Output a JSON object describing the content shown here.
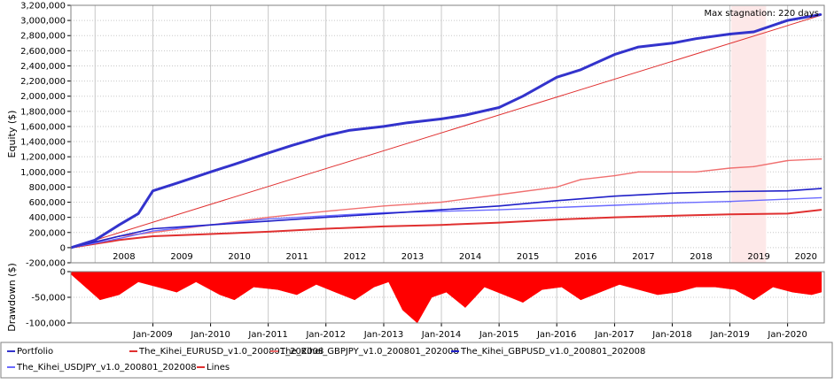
{
  "chart_data": [
    {
      "type": "line",
      "ylabel": "Equity ($)",
      "ylim": [
        -200000,
        3200000
      ],
      "y_ticks": [
        "-200,000",
        "0",
        "200,000",
        "400,000",
        "600,000",
        "800,000",
        "1,000,000",
        "1,200,000",
        "1,400,000",
        "1,600,000",
        "1,800,000",
        "2,000,000",
        "2,200,000",
        "2,400,000",
        "2,600,000",
        "2,800,000",
        "3,000,000",
        "3,200,000"
      ],
      "x_ticks": [
        "2008",
        "2009",
        "2010",
        "2011",
        "2012",
        "2013",
        "2014",
        "2015",
        "2016",
        "2017",
        "2018",
        "2019",
        "2020"
      ],
      "grid": true,
      "annotation": "Max stagnation: 220 days",
      "stagnation_period": {
        "start": "2019-01-10",
        "end": "2019-08-18"
      },
      "series": [
        {
          "name": "Portfolio",
          "color": "#3333cc",
          "x": [
            "2007-08-01",
            "2008-01-01",
            "2008-06-01",
            "2008-10-01",
            "2009-01-01",
            "2009-06-01",
            "2010-01-01",
            "2010-06-01",
            "2011-01-01",
            "2011-06-01",
            "2012-01-01",
            "2012-06-01",
            "2013-01-01",
            "2013-06-01",
            "2014-01-01",
            "2014-06-01",
            "2015-01-01",
            "2015-06-01",
            "2016-01-01",
            "2016-06-01",
            "2017-01-01",
            "2017-06-01",
            "2018-01-01",
            "2018-06-01",
            "2019-01-01",
            "2019-06-01",
            "2020-01-01",
            "2020-08-01"
          ],
          "values": [
            0,
            100000,
            300000,
            450000,
            750000,
            850000,
            1000000,
            1100000,
            1250000,
            1350000,
            1480000,
            1550000,
            1600000,
            1650000,
            1700000,
            1750000,
            1850000,
            2000000,
            2250000,
            2350000,
            2550000,
            2650000,
            2700000,
            2760000,
            2820000,
            2850000,
            3000000,
            3080000
          ]
        },
        {
          "name": "The_Kihei_EURUSD_v1.0_200801_202008",
          "color": "#e03030",
          "x": [
            "2007-08-01",
            "2008-06-01",
            "2009-01-01",
            "2010-01-01",
            "2011-01-01",
            "2012-01-01",
            "2013-01-01",
            "2014-01-01",
            "2015-01-01",
            "2016-01-01",
            "2017-01-01",
            "2018-01-01",
            "2019-01-01",
            "2020-01-01",
            "2020-08-01"
          ],
          "values": [
            0,
            100000,
            150000,
            180000,
            210000,
            250000,
            280000,
            300000,
            330000,
            370000,
            400000,
            420000,
            440000,
            450000,
            500000
          ]
        },
        {
          "name": "The_Kihei_GBPJPY_v1.0_200801_202008",
          "color": "#f07070",
          "x": [
            "2007-08-01",
            "2008-06-01",
            "2009-01-01",
            "2010-01-01",
            "2011-01-01",
            "2012-01-01",
            "2013-01-01",
            "2014-01-01",
            "2015-01-01",
            "2016-01-01",
            "2016-06-01",
            "2017-01-01",
            "2017-06-01",
            "2018-01-01",
            "2018-06-01",
            "2019-01-01",
            "2019-06-01",
            "2020-01-01",
            "2020-08-01"
          ],
          "values": [
            0,
            150000,
            200000,
            300000,
            400000,
            480000,
            550000,
            600000,
            700000,
            800000,
            900000,
            950000,
            1000000,
            1000000,
            1000000,
            1050000,
            1070000,
            1150000,
            1170000
          ]
        },
        {
          "name": "The_Kihei_GBPUSD_v1.0_200801_202008",
          "color": "#2020c8",
          "x": [
            "2007-08-01",
            "2008-06-01",
            "2009-01-01",
            "2010-01-01",
            "2011-01-01",
            "2012-01-01",
            "2013-01-01",
            "2014-01-01",
            "2015-01-01",
            "2016-01-01",
            "2017-01-01",
            "2018-01-01",
            "2019-01-01",
            "2020-01-01",
            "2020-08-01"
          ],
          "values": [
            0,
            150000,
            250000,
            300000,
            350000,
            400000,
            450000,
            500000,
            550000,
            620000,
            680000,
            720000,
            740000,
            750000,
            780000
          ]
        },
        {
          "name": "The_Kihei_USDJPY_v1.0_200801_202008",
          "color": "#6a6aff",
          "x": [
            "2007-08-01",
            "2008-06-01",
            "2009-01-01",
            "2010-01-01",
            "2011-01-01",
            "2012-01-01",
            "2013-01-01",
            "2014-01-01",
            "2015-01-01",
            "2016-01-01",
            "2017-01-01",
            "2018-01-01",
            "2019-01-01",
            "2020-01-01",
            "2020-08-01"
          ],
          "values": [
            0,
            120000,
            220000,
            300000,
            380000,
            420000,
            460000,
            480000,
            500000,
            530000,
            560000,
            590000,
            610000,
            640000,
            660000
          ]
        },
        {
          "name": "Lines",
          "color": "#e03030",
          "x": [
            "2007-08-01",
            "2020-08-01"
          ],
          "values": [
            0,
            3070000
          ]
        }
      ]
    },
    {
      "type": "area",
      "ylabel": "Drawdown ($)",
      "ylim": [
        -100000,
        0
      ],
      "y_ticks": [
        "0",
        "-50,000",
        "-100,000"
      ],
      "x_ticks": [
        "Jan-2009",
        "Jan-2010",
        "Jan-2011",
        "Jan-2012",
        "Jan-2013",
        "Jan-2014",
        "Jan-2015",
        "Jan-2016",
        "Jan-2017",
        "Jan-2018",
        "Jan-2019",
        "Jan-2020"
      ],
      "grid": true,
      "color": "#ff0000",
      "series": [
        {
          "name": "Drawdown",
          "x": [
            "2007-08-01",
            "2008-02-01",
            "2008-06-01",
            "2008-10-01",
            "2009-02-01",
            "2009-06-01",
            "2009-10-01",
            "2010-03-01",
            "2010-06-01",
            "2010-10-01",
            "2011-03-01",
            "2011-07-01",
            "2011-11-01",
            "2012-03-01",
            "2012-07-01",
            "2012-11-01",
            "2013-02-01",
            "2013-05-01",
            "2013-08-01",
            "2013-11-01",
            "2014-02-01",
            "2014-06-01",
            "2014-10-01",
            "2015-02-01",
            "2015-06-01",
            "2015-10-01",
            "2016-02-01",
            "2016-06-01",
            "2016-10-01",
            "2017-02-01",
            "2017-06-01",
            "2017-10-01",
            "2018-02-01",
            "2018-06-01",
            "2018-10-01",
            "2019-02-01",
            "2019-06-01",
            "2019-10-01",
            "2020-02-01",
            "2020-06-01",
            "2020-08-01"
          ],
          "values": [
            -5000,
            -55000,
            -45000,
            -20000,
            -30000,
            -40000,
            -20000,
            -45000,
            -55000,
            -30000,
            -35000,
            -45000,
            -25000,
            -40000,
            -55000,
            -30000,
            -20000,
            -75000,
            -100000,
            -50000,
            -40000,
            -70000,
            -30000,
            -45000,
            -60000,
            -35000,
            -30000,
            -55000,
            -40000,
            -25000,
            -35000,
            -45000,
            -40000,
            -30000,
            -30000,
            -35000,
            -55000,
            -30000,
            -40000,
            -45000,
            -40000
          ]
        }
      ]
    }
  ],
  "legend": {
    "items": [
      {
        "label": "Portfolio",
        "color": "#3333cc"
      },
      {
        "label": "The_Kihei_EURUSD_v1.0_200801_202008",
        "color": "#e03030"
      },
      {
        "label": "The_Kihei_GBPJPY_v1.0_200801_202008",
        "color": "#f07070"
      },
      {
        "label": "The_Kihei_GBPUSD_v1.0_200801_202008",
        "color": "#2020c8"
      },
      {
        "label": "The_Kihei_USDJPY_v1.0_200801_202008",
        "color": "#6a6aff"
      },
      {
        "label": "Lines",
        "color": "#e03030"
      }
    ]
  },
  "colors": {
    "stagnation_fill": "#fde8e8",
    "annotation_text": "#f08080",
    "grid": "#c8c8c8",
    "drawdown": "#ff0000"
  }
}
